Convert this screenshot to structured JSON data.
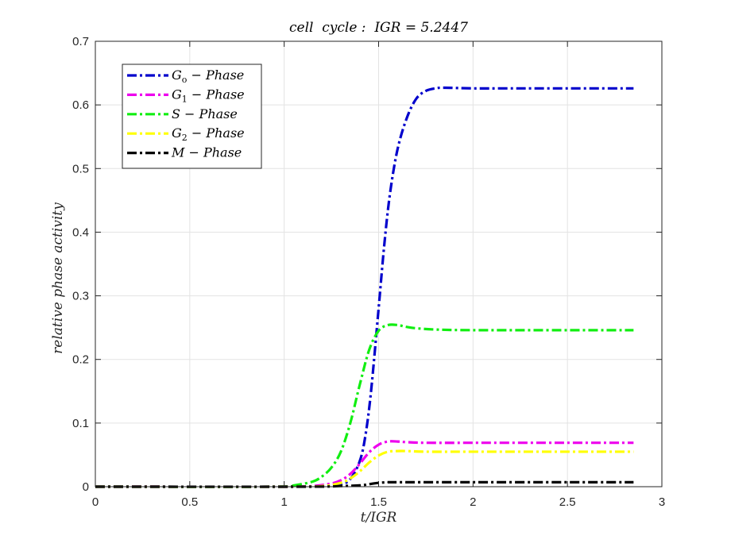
{
  "chart_data": {
    "type": "line",
    "title": "cell  cycle :  IGR = 5.2447",
    "xlabel": "t/IGR",
    "ylabel": "relative phase activity",
    "xlim": [
      0,
      3
    ],
    "ylim": [
      0,
      0.7
    ],
    "xticks": [
      0,
      0.5,
      1,
      1.5,
      2,
      2.5,
      3
    ],
    "xtick_labels": [
      "0",
      "0.5",
      "1",
      "1.5",
      "2",
      "2.5",
      "3"
    ],
    "yticks": [
      0,
      0.1,
      0.2,
      0.3,
      0.4,
      0.5,
      0.6,
      0.7
    ],
    "ytick_labels": [
      "0",
      "0.1",
      "0.2",
      "0.3",
      "0.4",
      "0.5",
      "0.6",
      "0.7"
    ],
    "grid": true,
    "legend_position": "top-left",
    "series": [
      {
        "name": "G_o - Phase",
        "label_main": "G",
        "label_sub": "o",
        "label_rest": " − Phase",
        "color": "#0000cc",
        "x": [
          0,
          1.0,
          1.2,
          1.3,
          1.35,
          1.4,
          1.43,
          1.46,
          1.5,
          1.53,
          1.56,
          1.6,
          1.65,
          1.7,
          1.75,
          1.8,
          1.85,
          2.0,
          2.2,
          2.5,
          2.85
        ],
        "y": [
          0,
          0,
          0.001,
          0.004,
          0.012,
          0.04,
          0.08,
          0.15,
          0.28,
          0.38,
          0.46,
          0.53,
          0.58,
          0.61,
          0.622,
          0.626,
          0.627,
          0.626,
          0.626,
          0.626,
          0.626
        ]
      },
      {
        "name": "G_1 - Phase",
        "label_main": "G",
        "label_sub": "1",
        "label_rest": " − Phase",
        "color": "#ee00ee",
        "x": [
          0,
          1.0,
          1.15,
          1.25,
          1.3,
          1.35,
          1.4,
          1.45,
          1.5,
          1.55,
          1.6,
          1.65,
          1.75,
          2.0,
          2.5,
          2.85
        ],
        "y": [
          0,
          0,
          0.001,
          0.005,
          0.01,
          0.02,
          0.036,
          0.054,
          0.066,
          0.071,
          0.071,
          0.07,
          0.069,
          0.069,
          0.069,
          0.069
        ]
      },
      {
        "name": "S - Phase",
        "label_main": "S",
        "label_sub": "",
        "label_rest": " − Phase",
        "color": "#11ee11",
        "x": [
          0,
          0.95,
          1.05,
          1.15,
          1.2,
          1.25,
          1.3,
          1.35,
          1.4,
          1.45,
          1.5,
          1.55,
          1.6,
          1.65,
          1.7,
          1.8,
          2.0,
          2.5,
          2.85
        ],
        "y": [
          0,
          0,
          0.002,
          0.008,
          0.016,
          0.03,
          0.055,
          0.1,
          0.16,
          0.215,
          0.245,
          0.254,
          0.254,
          0.251,
          0.249,
          0.247,
          0.246,
          0.246,
          0.246
        ]
      },
      {
        "name": "G_2 - Phase",
        "label_main": "G",
        "label_sub": "2",
        "label_rest": " − Phase",
        "color": "#ffff00",
        "x": [
          0,
          1.0,
          1.2,
          1.3,
          1.35,
          1.4,
          1.45,
          1.5,
          1.55,
          1.6,
          1.65,
          1.75,
          2.0,
          2.5,
          2.85
        ],
        "y": [
          0,
          0,
          0.001,
          0.006,
          0.013,
          0.024,
          0.038,
          0.049,
          0.055,
          0.056,
          0.056,
          0.055,
          0.055,
          0.055,
          0.055
        ]
      },
      {
        "name": "M - Phase",
        "label_main": "M",
        "label_sub": "",
        "label_rest": " − Phase",
        "color": "#000000",
        "x": [
          0,
          1.1,
          1.3,
          1.4,
          1.45,
          1.5,
          1.55,
          1.6,
          2.0,
          2.5,
          2.85
        ],
        "y": [
          0,
          0,
          0.001,
          0.002,
          0.004,
          0.006,
          0.007,
          0.007,
          0.007,
          0.007,
          0.007
        ]
      }
    ]
  }
}
